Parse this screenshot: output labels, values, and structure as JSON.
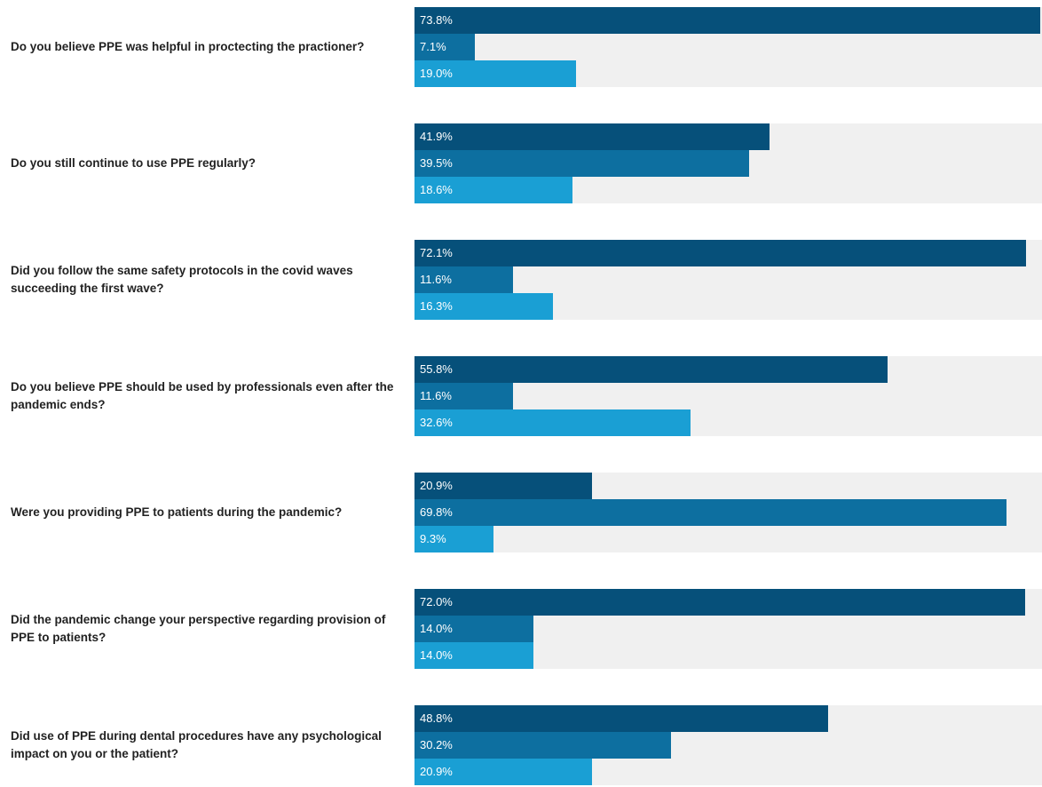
{
  "colors": {
    "series": [
      "#06507a",
      "#0d6fa0",
      "#1a9fd4"
    ],
    "track": "#f0f0f0",
    "text": "#222222",
    "label": "#ffffff"
  },
  "chart_data": {
    "type": "bar",
    "orientation": "horizontal",
    "xlim": [
      0,
      74
    ],
    "grid": false,
    "categories": [
      "Do you believe PPE was helpful in proctecting the practioner?",
      "Do you still continue to use PPE regularly?",
      "Did you follow the same safety protocols in the covid waves succeeding the first wave?",
      "Do you believe PPE should be used by professionals even after the pandemic ends?",
      "Were you providing PPE to patients during the pandemic?",
      "Did the pandemic change your perspective regarding provision of PPE to patients?",
      "Did use of PPE during dental procedures have any psychological impact on you or the patient?"
    ],
    "series": [
      {
        "values": [
          73.8,
          41.9,
          72.1,
          55.8,
          20.9,
          72.0,
          48.8
        ],
        "labels": [
          "73.8%",
          "41.9%",
          "72.1%",
          "55.8%",
          "20.9%",
          "72.0%",
          "48.8%"
        ]
      },
      {
        "values": [
          7.1,
          39.5,
          11.6,
          11.6,
          69.8,
          14.0,
          30.2
        ],
        "labels": [
          "7.1%",
          "39.5%",
          "11.6%",
          "11.6%",
          "69.8%",
          "14.0%",
          "30.2%"
        ]
      },
      {
        "values": [
          19.0,
          18.6,
          16.3,
          32.6,
          9.3,
          14.0,
          20.9
        ],
        "labels": [
          "19.0%",
          "18.6%",
          "16.3%",
          "32.6%",
          "9.3%",
          "14.0%",
          "20.9%"
        ]
      }
    ]
  }
}
